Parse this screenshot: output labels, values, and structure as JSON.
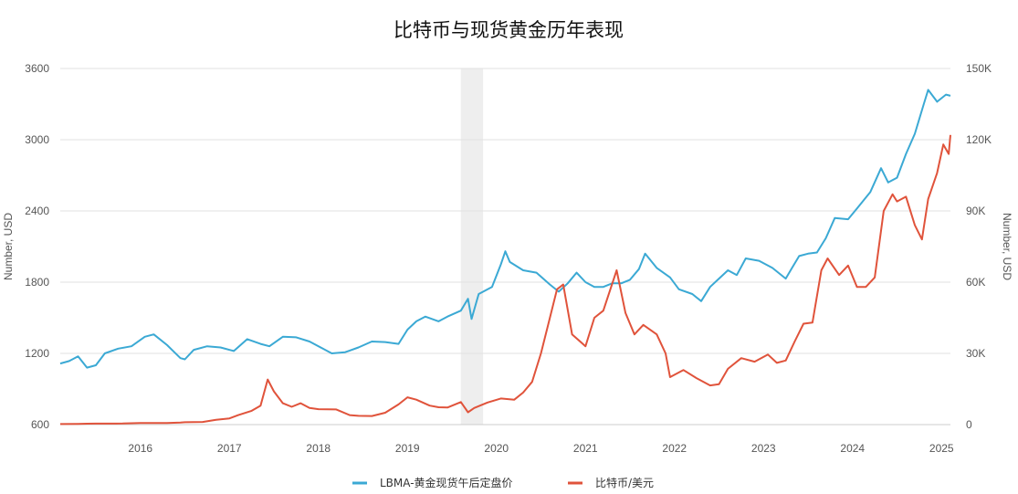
{
  "colors": {
    "gold": "#3ba9d4",
    "btc": "#e0533b",
    "shade": "#eeeeee",
    "grid": "#e2e2e2",
    "text": "#555555"
  },
  "chart_data": {
    "type": "line",
    "title": "比特币与现货黄金历年表现",
    "y_left": {
      "label": "Number, USD",
      "lim": [
        600,
        3600
      ],
      "ticks": [
        "600",
        "1200",
        "1800",
        "2400",
        "3000",
        "3600"
      ]
    },
    "y_right": {
      "label": "Number, USD",
      "lim": [
        0,
        150000
      ],
      "ticks": [
        "0",
        "30K",
        "60K",
        "90K",
        "120K",
        "150K"
      ]
    },
    "x": {
      "lim": [
        2015.6,
        2025.6
      ],
      "ticks": [
        "2016",
        "2017",
        "2018",
        "2019",
        "2020",
        "2021",
        "2022",
        "2023",
        "2024",
        "2025"
      ]
    },
    "highlight_band": [
      2020.1,
      2020.35
    ],
    "grid": true,
    "legend_position": "bottom-center",
    "series": [
      {
        "name": "LBMA-黄金现货午后定盘价",
        "axis": "left",
        "color": "#3ba9d4",
        "points": [
          [
            2015.6,
            1115
          ],
          [
            2015.7,
            1135
          ],
          [
            2015.8,
            1175
          ],
          [
            2015.9,
            1080
          ],
          [
            2016.0,
            1100
          ],
          [
            2016.1,
            1200
          ],
          [
            2016.25,
            1240
          ],
          [
            2016.4,
            1260
          ],
          [
            2016.55,
            1340
          ],
          [
            2016.65,
            1360
          ],
          [
            2016.8,
            1270
          ],
          [
            2016.95,
            1160
          ],
          [
            2017.0,
            1150
          ],
          [
            2017.1,
            1230
          ],
          [
            2017.25,
            1260
          ],
          [
            2017.4,
            1250
          ],
          [
            2017.55,
            1220
          ],
          [
            2017.7,
            1320
          ],
          [
            2017.85,
            1280
          ],
          [
            2017.95,
            1260
          ],
          [
            2018.1,
            1340
          ],
          [
            2018.25,
            1335
          ],
          [
            2018.4,
            1300
          ],
          [
            2018.55,
            1240
          ],
          [
            2018.65,
            1200
          ],
          [
            2018.8,
            1210
          ],
          [
            2018.95,
            1250
          ],
          [
            2019.1,
            1300
          ],
          [
            2019.25,
            1295
          ],
          [
            2019.4,
            1280
          ],
          [
            2019.5,
            1400
          ],
          [
            2019.6,
            1470
          ],
          [
            2019.7,
            1510
          ],
          [
            2019.85,
            1470
          ],
          [
            2019.95,
            1510
          ],
          [
            2020.1,
            1560
          ],
          [
            2020.18,
            1660
          ],
          [
            2020.22,
            1490
          ],
          [
            2020.3,
            1700
          ],
          [
            2020.45,
            1760
          ],
          [
            2020.55,
            1950
          ],
          [
            2020.6,
            2060
          ],
          [
            2020.65,
            1970
          ],
          [
            2020.8,
            1900
          ],
          [
            2020.95,
            1880
          ],
          [
            2021.1,
            1780
          ],
          [
            2021.2,
            1720
          ],
          [
            2021.3,
            1790
          ],
          [
            2021.4,
            1880
          ],
          [
            2021.5,
            1800
          ],
          [
            2021.6,
            1760
          ],
          [
            2021.7,
            1760
          ],
          [
            2021.8,
            1790
          ],
          [
            2021.9,
            1790
          ],
          [
            2022.0,
            1820
          ],
          [
            2022.1,
            1910
          ],
          [
            2022.17,
            2040
          ],
          [
            2022.3,
            1920
          ],
          [
            2022.45,
            1840
          ],
          [
            2022.55,
            1740
          ],
          [
            2022.7,
            1700
          ],
          [
            2022.8,
            1640
          ],
          [
            2022.9,
            1760
          ],
          [
            2023.0,
            1830
          ],
          [
            2023.1,
            1900
          ],
          [
            2023.2,
            1860
          ],
          [
            2023.3,
            2000
          ],
          [
            2023.45,
            1980
          ],
          [
            2023.6,
            1920
          ],
          [
            2023.75,
            1830
          ],
          [
            2023.82,
            1920
          ],
          [
            2023.9,
            2020
          ],
          [
            2024.0,
            2040
          ],
          [
            2024.1,
            2050
          ],
          [
            2024.2,
            2170
          ],
          [
            2024.3,
            2340
          ],
          [
            2024.45,
            2330
          ],
          [
            2024.55,
            2420
          ],
          [
            2024.7,
            2560
          ],
          [
            2024.82,
            2760
          ],
          [
            2024.9,
            2640
          ],
          [
            2025.0,
            2680
          ],
          [
            2025.1,
            2880
          ],
          [
            2025.2,
            3050
          ],
          [
            2025.3,
            3300
          ],
          [
            2025.35,
            3420
          ],
          [
            2025.45,
            3320
          ],
          [
            2025.55,
            3380
          ],
          [
            2025.6,
            3370
          ]
        ]
      },
      {
        "name": "比特币/美元",
        "axis": "right",
        "color": "#e0533b",
        "points": [
          [
            2015.6,
            250
          ],
          [
            2015.8,
            300
          ],
          [
            2015.9,
            400
          ],
          [
            2016.0,
            430
          ],
          [
            2016.3,
            450
          ],
          [
            2016.5,
            650
          ],
          [
            2016.8,
            700
          ],
          [
            2016.95,
            900
          ],
          [
            2017.0,
            1000
          ],
          [
            2017.2,
            1100
          ],
          [
            2017.35,
            2000
          ],
          [
            2017.5,
            2600
          ],
          [
            2017.6,
            4000
          ],
          [
            2017.75,
            5800
          ],
          [
            2017.85,
            8000
          ],
          [
            2017.93,
            19000
          ],
          [
            2018.0,
            14000
          ],
          [
            2018.1,
            9000
          ],
          [
            2018.2,
            7500
          ],
          [
            2018.3,
            9000
          ],
          [
            2018.4,
            7000
          ],
          [
            2018.5,
            6500
          ],
          [
            2018.7,
            6400
          ],
          [
            2018.85,
            4000
          ],
          [
            2018.95,
            3700
          ],
          [
            2019.1,
            3600
          ],
          [
            2019.25,
            5000
          ],
          [
            2019.4,
            8500
          ],
          [
            2019.5,
            11500
          ],
          [
            2019.6,
            10500
          ],
          [
            2019.75,
            8000
          ],
          [
            2019.85,
            7300
          ],
          [
            2019.95,
            7200
          ],
          [
            2020.1,
            9500
          ],
          [
            2020.18,
            5200
          ],
          [
            2020.25,
            7000
          ],
          [
            2020.4,
            9300
          ],
          [
            2020.55,
            11000
          ],
          [
            2020.7,
            10500
          ],
          [
            2020.8,
            13500
          ],
          [
            2020.9,
            18000
          ],
          [
            2021.0,
            30000
          ],
          [
            2021.1,
            45000
          ],
          [
            2021.18,
            57000
          ],
          [
            2021.25,
            59000
          ],
          [
            2021.35,
            38000
          ],
          [
            2021.5,
            33000
          ],
          [
            2021.6,
            45000
          ],
          [
            2021.7,
            48000
          ],
          [
            2021.85,
            65000
          ],
          [
            2021.95,
            47000
          ],
          [
            2022.05,
            38000
          ],
          [
            2022.15,
            42000
          ],
          [
            2022.3,
            38000
          ],
          [
            2022.4,
            30000
          ],
          [
            2022.45,
            20000
          ],
          [
            2022.6,
            23000
          ],
          [
            2022.75,
            19500
          ],
          [
            2022.9,
            16500
          ],
          [
            2023.0,
            17000
          ],
          [
            2023.1,
            23500
          ],
          [
            2023.25,
            28000
          ],
          [
            2023.4,
            26500
          ],
          [
            2023.55,
            29500
          ],
          [
            2023.65,
            26000
          ],
          [
            2023.75,
            27000
          ],
          [
            2023.85,
            35000
          ],
          [
            2023.95,
            42500
          ],
          [
            2024.05,
            43000
          ],
          [
            2024.15,
            65000
          ],
          [
            2024.22,
            70000
          ],
          [
            2024.35,
            63000
          ],
          [
            2024.45,
            67000
          ],
          [
            2024.55,
            58000
          ],
          [
            2024.65,
            58000
          ],
          [
            2024.75,
            62000
          ],
          [
            2024.85,
            90000
          ],
          [
            2024.95,
            97000
          ],
          [
            2025.0,
            94000
          ],
          [
            2025.1,
            96000
          ],
          [
            2025.2,
            84000
          ],
          [
            2025.28,
            78000
          ],
          [
            2025.35,
            95000
          ],
          [
            2025.45,
            106000
          ],
          [
            2025.52,
            118000
          ],
          [
            2025.58,
            114000
          ],
          [
            2025.6,
            122000
          ]
        ]
      }
    ]
  }
}
